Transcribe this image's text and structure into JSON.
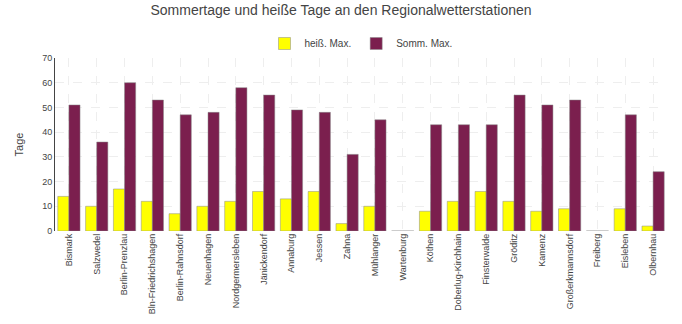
{
  "chart_data": {
    "type": "bar",
    "title": "Sommertage und heiße Tage an den Regionalwetterstationen",
    "ylabel": "Tage",
    "categories": [
      "Bismark",
      "Salzwedel",
      "Berlin-Prenzlau",
      "Bln-Friedrichshagen",
      "Berlin-Rahnsdorf",
      "Neuenhagen",
      "Nordgermersleben",
      "Jänickendorf",
      "Annaburg",
      "Jessen",
      "Zahna",
      "Mühlanger",
      "Wartenburg",
      "Köthen",
      "Doberlug-Kirchhain",
      "Finsterwalde",
      "Gröditz",
      "Kamenz",
      "Großerkmannsdorf",
      "Freiberg",
      "Eisleben",
      "Olbernhau"
    ],
    "series": [
      {
        "name": "heiß. Max.",
        "color": "#FFFF00",
        "values": [
          14,
          10,
          17,
          12,
          7,
          10,
          12,
          16,
          13,
          16,
          3,
          10,
          0,
          8,
          12,
          16,
          12,
          8,
          9,
          0,
          9,
          2
        ]
      },
      {
        "name": "Somm. Max.",
        "color": "#7B1F4E",
        "values": [
          51,
          36,
          60,
          53,
          47,
          48,
          58,
          55,
          49,
          48,
          31,
          45,
          0,
          43,
          43,
          43,
          55,
          51,
          53,
          0,
          47,
          24
        ]
      }
    ],
    "ylim": [
      0,
      70
    ],
    "yticks": [
      0,
      10,
      20,
      30,
      40,
      50,
      60,
      70
    ],
    "grid": true,
    "legend": "top"
  }
}
